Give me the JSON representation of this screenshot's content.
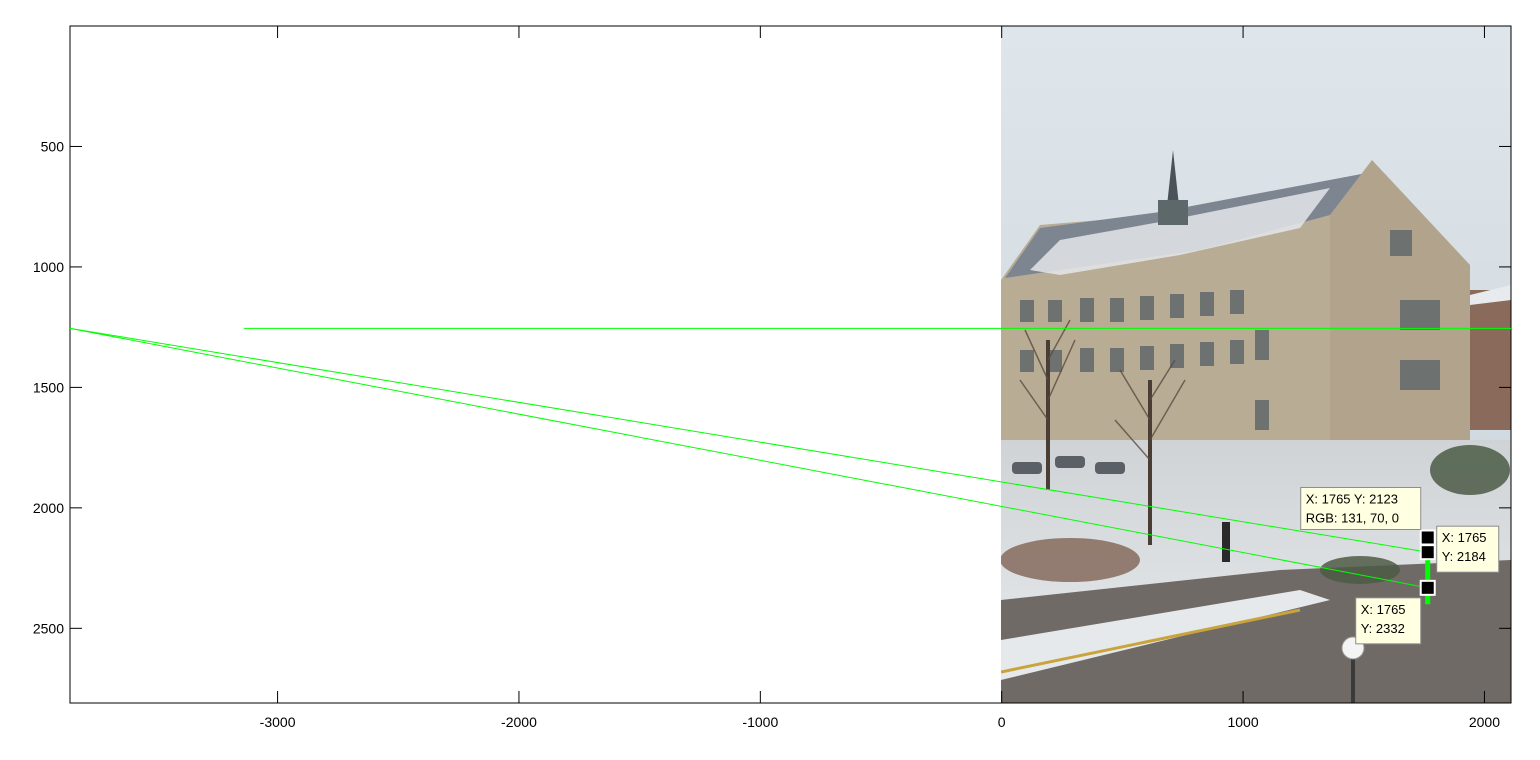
{
  "axes": {
    "x_ticks": [
      "-3000",
      "-2000",
      "-1000",
      "0",
      "1000",
      "2000"
    ],
    "y_ticks": [
      "500",
      "1000",
      "1500",
      "2000",
      "2500"
    ],
    "xlim": [
      -3860,
      2110
    ],
    "ylim": [
      0,
      2810
    ],
    "y_direction": "reverse",
    "box": true,
    "grid": false
  },
  "image": {
    "subject": "stone university building with spire, snowy campus lawn, bare trees, road and parked cars",
    "x_range": [
      0,
      2110
    ],
    "y_range": [
      0,
      2810
    ]
  },
  "lines": {
    "color": "#00ff00",
    "segments": [
      {
        "name": "horizon-line",
        "x1": -3140,
        "y1": 1255,
        "x2": 2110,
        "y2": 1255
      },
      {
        "name": "vanish-line-top",
        "x1": -3860,
        "y1": 1255,
        "x2": 1765,
        "y2": 2184
      },
      {
        "name": "vanish-line-bottom",
        "x1": -3860,
        "y1": 1255,
        "x2": 1765,
        "y2": 2332
      },
      {
        "name": "measured-object",
        "x1": 1765,
        "y1": 2123,
        "x2": 1765,
        "y2": 2400
      }
    ]
  },
  "datatips": [
    {
      "name": "datatip-1",
      "x": 1765,
      "y": 2123,
      "lines": [
        "X: 1765 Y: 2123",
        "RGB: 131, 70, 0"
      ]
    },
    {
      "name": "datatip-2",
      "x": 1765,
      "y": 2184,
      "lines": [
        "X: 1765",
        "Y: 2184"
      ]
    },
    {
      "name": "datatip-3",
      "x": 1765,
      "y": 2332,
      "lines": [
        "X: 1765",
        "Y: 2332"
      ]
    }
  ]
}
